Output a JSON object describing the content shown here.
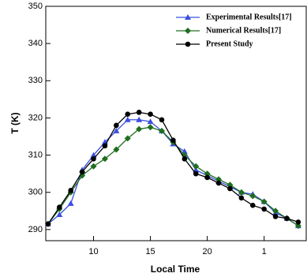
{
  "chart_data": {
    "type": "line",
    "xlabel": "Local Time",
    "ylabel": "T (K)",
    "x": [
      6,
      7,
      8,
      9,
      10,
      11,
      12,
      13,
      14,
      15,
      16,
      17,
      18,
      19,
      20,
      21,
      22,
      23,
      24,
      25,
      26,
      27,
      28
    ],
    "series": [
      {
        "name": "Experimental Results[17]",
        "color": "#3b4fe0",
        "marker": "triangle",
        "values": [
          291.5,
          294,
          297,
          306,
          310,
          313.5,
          316.5,
          319.5,
          319.5,
          319,
          316.5,
          313,
          311,
          306,
          304.5,
          303,
          301.5,
          300,
          299.5,
          297.5,
          294.5,
          293,
          291
        ]
      },
      {
        "name": "Numerical Results[17]",
        "color": "#1e6e1e",
        "marker": "diamond",
        "values": [
          291.5,
          295.5,
          300,
          304.5,
          307,
          309,
          311.5,
          314.5,
          317,
          317.5,
          316.5,
          313.5,
          310,
          307,
          305,
          303.5,
          302,
          300,
          299,
          297.5,
          295,
          293,
          291
        ]
      },
      {
        "name": "Present Study",
        "color": "#000000",
        "marker": "circle",
        "values": [
          291.5,
          296,
          300.5,
          305.5,
          309,
          312.5,
          318,
          321,
          321.5,
          321,
          319.5,
          314,
          309,
          305,
          304,
          302.5,
          301,
          298.5,
          296.5,
          295.5,
          293.5,
          293,
          292
        ]
      }
    ],
    "xlim": [
      5.8,
      28.7
    ],
    "xticks": [
      10,
      15,
      20,
      {
        "value": 25,
        "label": "1"
      }
    ],
    "ylim": [
      287,
      350
    ],
    "yticks": [
      290,
      300,
      310,
      320,
      330,
      340,
      350
    ],
    "legend": "upper right"
  }
}
